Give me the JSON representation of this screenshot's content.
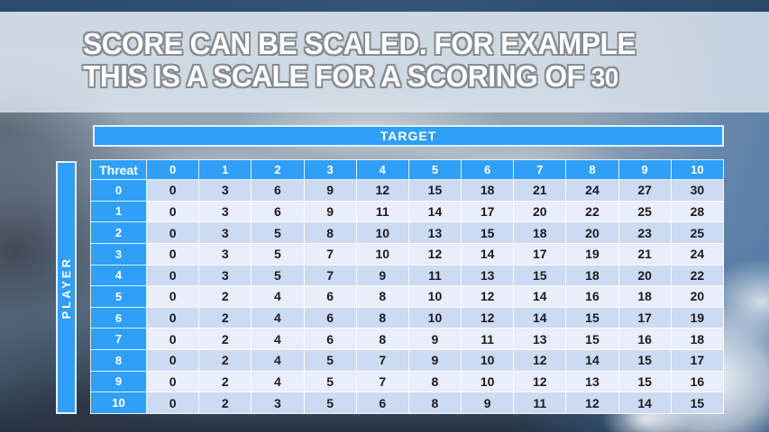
{
  "slide": {
    "title_line1": "SCORE CAN BE SCALED. FOR EXAMPLE",
    "title_line2_prefix": "THIS IS A SCALE FOR A SCORING OF ",
    "title_number": "30"
  },
  "table": {
    "target_label": "TARGET",
    "player_label": "PLAYER",
    "corner_label": "Threat",
    "column_headers": [
      "0",
      "1",
      "2",
      "3",
      "4",
      "5",
      "6",
      "7",
      "8",
      "9",
      "10"
    ],
    "rows": [
      {
        "header": "0",
        "values": [
          0,
          3,
          6,
          9,
          12,
          15,
          18,
          21,
          24,
          27,
          30
        ]
      },
      {
        "header": "1",
        "values": [
          0,
          3,
          6,
          9,
          11,
          14,
          17,
          20,
          22,
          25,
          28
        ]
      },
      {
        "header": "2",
        "values": [
          0,
          3,
          5,
          8,
          10,
          13,
          15,
          18,
          20,
          23,
          25
        ]
      },
      {
        "header": "3",
        "values": [
          0,
          3,
          5,
          7,
          10,
          12,
          14,
          17,
          19,
          21,
          24
        ]
      },
      {
        "header": "4",
        "values": [
          0,
          3,
          5,
          7,
          9,
          11,
          13,
          15,
          18,
          20,
          22
        ]
      },
      {
        "header": "5",
        "values": [
          0,
          2,
          4,
          6,
          8,
          10,
          12,
          14,
          16,
          18,
          20
        ]
      },
      {
        "header": "6",
        "values": [
          0,
          2,
          4,
          6,
          8,
          10,
          12,
          14,
          15,
          17,
          19
        ]
      },
      {
        "header": "7",
        "values": [
          0,
          2,
          4,
          6,
          8,
          9,
          11,
          13,
          15,
          16,
          18
        ]
      },
      {
        "header": "8",
        "values": [
          0,
          2,
          4,
          5,
          7,
          9,
          10,
          12,
          14,
          15,
          17
        ]
      },
      {
        "header": "9",
        "values": [
          0,
          2,
          4,
          5,
          7,
          8,
          10,
          12,
          13,
          15,
          16
        ]
      },
      {
        "header": "10",
        "values": [
          0,
          2,
          3,
          5,
          6,
          8,
          9,
          11,
          12,
          14,
          15
        ]
      }
    ]
  },
  "colors": {
    "accent_blue": "#2f9ff7",
    "row_even": "#ccdaf2",
    "row_odd": "#e9eefa",
    "top_strip": "#2e4d71"
  }
}
